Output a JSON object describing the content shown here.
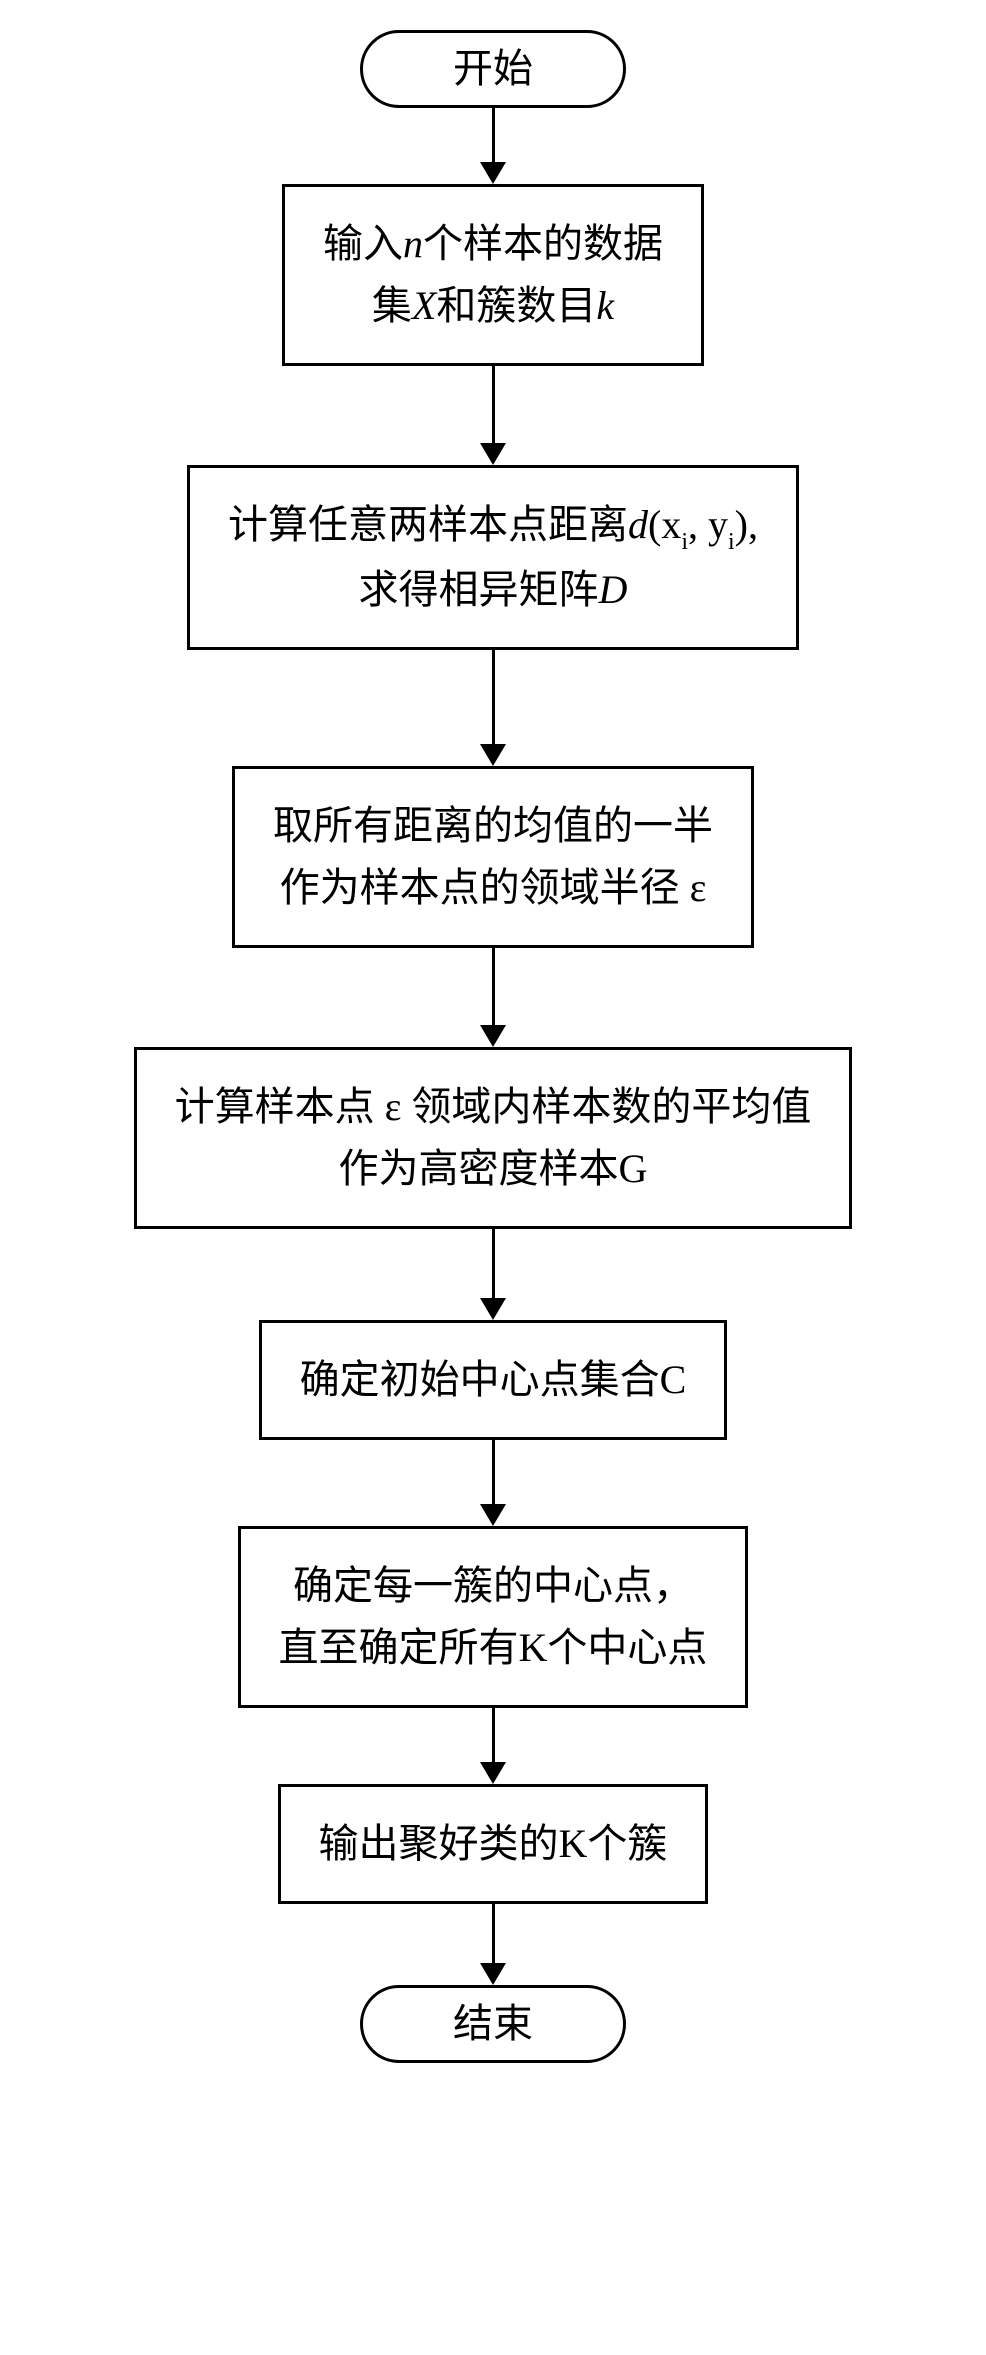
{
  "flowchart": {
    "type": "flowchart",
    "direction": "vertical",
    "background_color": "#ffffff",
    "border_color": "#000000",
    "border_width": 3,
    "font_family": "SimSun",
    "node_fontsize": 40,
    "terminal_border_radius": 50,
    "arrow_color": "#000000",
    "arrow_line_width": 3,
    "arrow_head_width": 26,
    "arrow_head_height": 22,
    "nodes": [
      {
        "id": "start",
        "shape": "terminal",
        "text": "开始"
      },
      {
        "id": "n1",
        "shape": "process",
        "text_html": "输入<span class='italic'>n</span>个样本的数据<br>集<span class='italic'>X</span>和簇数目<span class='italic'>k</span>"
      },
      {
        "id": "n2",
        "shape": "process",
        "text_html": "计算任意两样本点距离<span class='italic'>d</span>(x<span class='sub'>i</span>, y<span class='sub'>i</span>),<br>求得相异矩阵<span class='italic'>D</span>"
      },
      {
        "id": "n3",
        "shape": "process",
        "text_html": "取所有距离的均值的一半<br>作为样本点的领域半径 ε"
      },
      {
        "id": "n4",
        "shape": "process",
        "text_html": "计算样本点 ε 领域内样本数的平均值<br>作为高密度样本G"
      },
      {
        "id": "n5",
        "shape": "process",
        "text_html": "确定初始中心点集合C"
      },
      {
        "id": "n6",
        "shape": "process",
        "text_html": "确定每一簇的中心点，<br>直至确定所有K个中心点"
      },
      {
        "id": "n7",
        "shape": "process",
        "text_html": "输出聚好类的K个簇"
      },
      {
        "id": "end",
        "shape": "terminal",
        "text": "结束"
      }
    ],
    "arrow_gaps": [
      55,
      78,
      95,
      78,
      70,
      65,
      55,
      60
    ]
  }
}
